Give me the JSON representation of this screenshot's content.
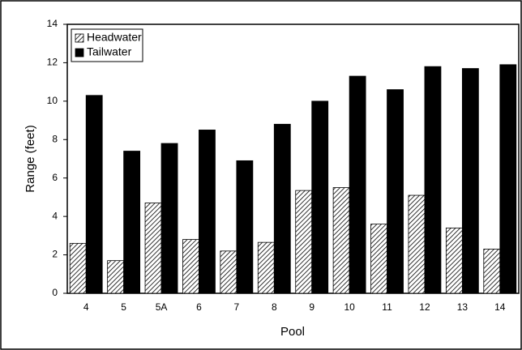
{
  "chart_data": {
    "type": "bar",
    "x_label": "Pool",
    "y_label": "Range (feet)",
    "categories": [
      "4",
      "5",
      "5A",
      "6",
      "7",
      "8",
      "9",
      "10",
      "11",
      "12",
      "13",
      "14"
    ],
    "series": [
      {
        "name": "Headwater",
        "color": "#000000",
        "pattern": "hatch",
        "values": [
          2.6,
          1.7,
          4.7,
          2.8,
          2.2,
          2.65,
          5.35,
          5.5,
          3.6,
          5.1,
          3.4,
          2.3
        ]
      },
      {
        "name": "Tailwater",
        "color": "#000000",
        "pattern": "solid",
        "values": [
          10.3,
          7.4,
          7.8,
          8.5,
          6.9,
          8.8,
          10.0,
          11.3,
          10.6,
          11.8,
          11.7,
          11.9
        ]
      }
    ],
    "ylim": [
      0,
      14
    ],
    "yticks": [
      0,
      2,
      4,
      6,
      8,
      10,
      12,
      14
    ],
    "grid": false,
    "legend": "upper left"
  }
}
